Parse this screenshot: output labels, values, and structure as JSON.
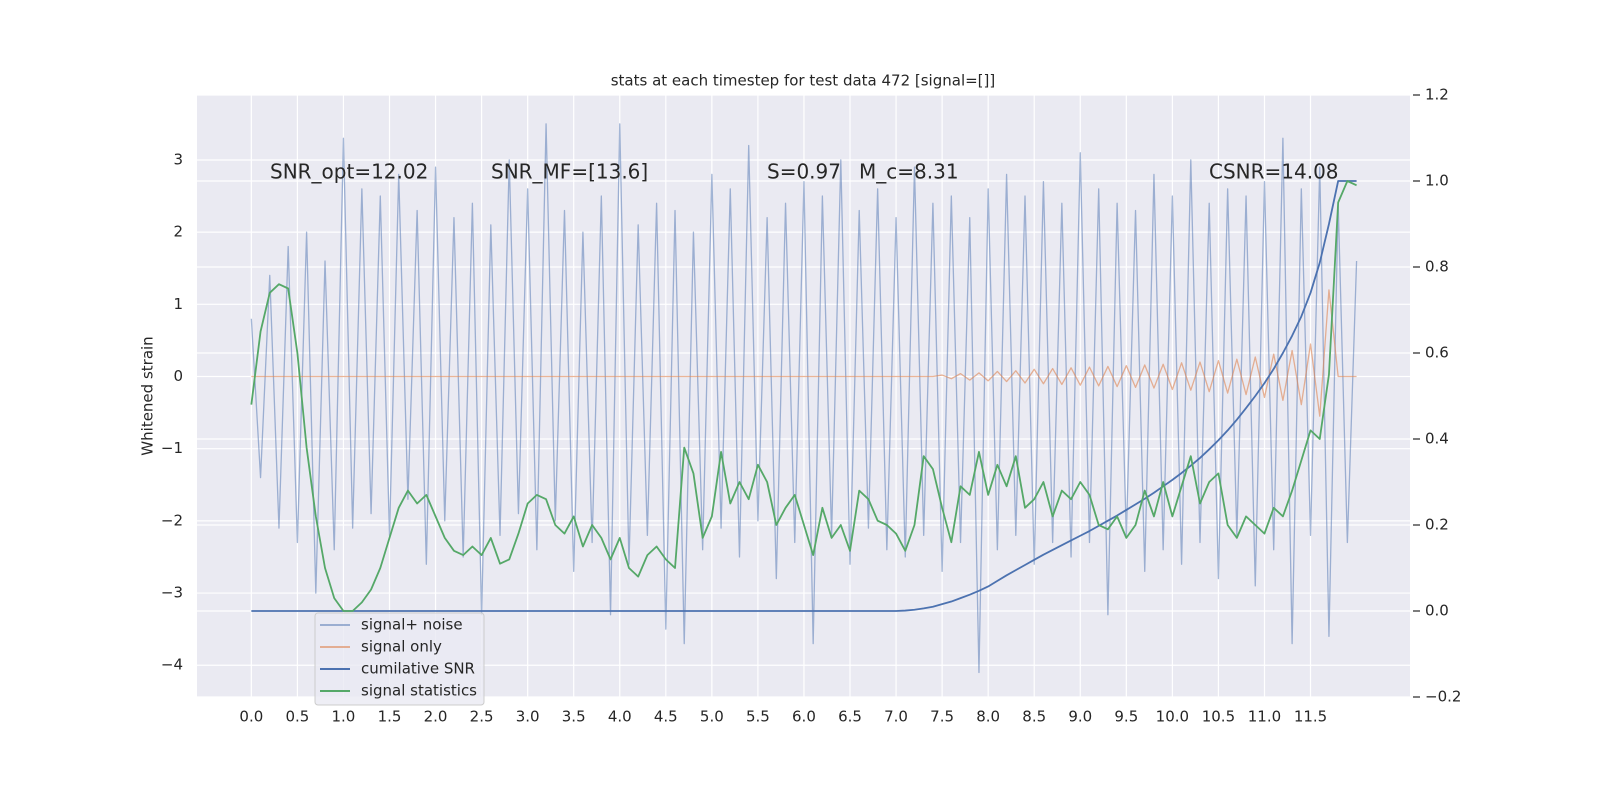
{
  "chart_data": {
    "type": "line",
    "title": "stats at each timestep for test data 472 [signal=[]]",
    "ylabel": "Whitened strain",
    "annotations": [
      "SNR_opt=12.02",
      "SNR_MF=[13.6]",
      "S=0.97",
      "M_c=8.31",
      "CSNR=14.08"
    ],
    "xlim": [
      -0.59,
      12.58
    ],
    "ylim": [
      -4.44,
      3.9
    ],
    "y2lim": [
      -0.2,
      1.2
    ],
    "xticks": [
      {
        "value": 0,
        "label": "0.0"
      },
      0.5,
      {
        "value": 1,
        "label": "1.0"
      },
      1.5,
      {
        "value": 2,
        "label": "2.0"
      },
      2.5,
      {
        "value": 3,
        "label": "3.0"
      },
      3.5,
      {
        "value": 4,
        "label": "4.0"
      },
      4.5,
      {
        "value": 5,
        "label": "5.0"
      },
      5.5,
      {
        "value": 6,
        "label": "6.0"
      },
      6.5,
      {
        "value": 7,
        "label": "7.0"
      },
      7.5,
      {
        "value": 8,
        "label": "8.0"
      },
      8.5,
      {
        "value": 9,
        "label": "9.0"
      },
      9.5,
      {
        "value": 10,
        "label": "10.0"
      },
      10.5,
      {
        "value": 11,
        "label": "11.0"
      },
      11.5
    ],
    "yticks": [
      {
        "value": -4,
        "label": "−4"
      },
      {
        "value": -3,
        "label": "−3"
      },
      {
        "value": -2,
        "label": "−2"
      },
      {
        "value": -1,
        "label": "−1"
      },
      0,
      1,
      2,
      3
    ],
    "y2ticks": [
      {
        "value": -0.2,
        "label": "−0.2"
      },
      {
        "value": 0,
        "label": "0.0"
      },
      0.2,
      0.4,
      0.6,
      0.8,
      {
        "value": 1,
        "label": "1.0"
      },
      1.2
    ],
    "grid": true,
    "legend": "lower left",
    "x": [
      0.0,
      0.1,
      0.2,
      0.3,
      0.4,
      0.5,
      0.6,
      0.7,
      0.8,
      0.9,
      1.0,
      1.1,
      1.2,
      1.3,
      1.4,
      1.5,
      1.6,
      1.7,
      1.8,
      1.9,
      2.0,
      2.1,
      2.2,
      2.3,
      2.4,
      2.5,
      2.6,
      2.7,
      2.8,
      2.9,
      3.0,
      3.1,
      3.2,
      3.3,
      3.4,
      3.5,
      3.6,
      3.7,
      3.8,
      3.9,
      4.0,
      4.1,
      4.2,
      4.3,
      4.4,
      4.5,
      4.6,
      4.7,
      4.8,
      4.9,
      5.0,
      5.1,
      5.2,
      5.3,
      5.4,
      5.5,
      5.6,
      5.7,
      5.8,
      5.9,
      6.0,
      6.1,
      6.2,
      6.3,
      6.4,
      6.5,
      6.6,
      6.7,
      6.8,
      6.9,
      7.0,
      7.1,
      7.2,
      7.3,
      7.4,
      7.5,
      7.6,
      7.7,
      7.8,
      7.9,
      8.0,
      8.1,
      8.2,
      8.3,
      8.4,
      8.5,
      8.6,
      8.7,
      8.8,
      8.9,
      9.0,
      9.1,
      9.2,
      9.3,
      9.4,
      9.5,
      9.6,
      9.7,
      9.8,
      9.9,
      10.0,
      10.1,
      10.2,
      10.3,
      10.4,
      10.5,
      10.6,
      10.7,
      10.8,
      10.9,
      11.0,
      11.1,
      11.2,
      11.3,
      11.4,
      11.5,
      11.6,
      11.7,
      11.8,
      11.9,
      12.0
    ],
    "series": [
      {
        "name": "signal+ noise",
        "color": "#4c72b0",
        "opacity": 0.5,
        "values": [
          0.8,
          -1.4,
          1.4,
          -2.1,
          1.8,
          -2.3,
          2.0,
          -3.0,
          1.6,
          -2.4,
          3.3,
          -2.1,
          2.6,
          -1.9,
          2.5,
          -2.2,
          2.8,
          -1.7,
          2.3,
          -2.6,
          2.9,
          -2.0,
          2.2,
          -2.5,
          2.4,
          -3.3,
          2.1,
          -2.2,
          3.0,
          -1.9,
          2.6,
          -2.4,
          3.5,
          -2.0,
          2.3,
          -2.7,
          2.0,
          -2.3,
          2.5,
          -3.3,
          3.5,
          -2.6,
          2.1,
          -2.2,
          2.4,
          -3.5,
          2.3,
          -3.7,
          2.0,
          -2.4,
          2.8,
          -2.1,
          2.6,
          -2.5,
          3.2,
          -2.0,
          2.2,
          -2.8,
          2.4,
          -2.3,
          2.7,
          -3.7,
          2.5,
          -2.2,
          3.0,
          -2.6,
          2.3,
          -2.1,
          2.6,
          -2.4,
          2.2,
          -2.5,
          2.9,
          -2.2,
          2.4,
          -2.7,
          2.5,
          -2.3,
          2.2,
          -4.1,
          2.6,
          -2.4,
          2.8,
          -2.2,
          2.5,
          -2.6,
          2.7,
          -2.3,
          2.4,
          -2.5,
          3.1,
          -2.3,
          2.6,
          -3.3,
          2.4,
          -2.2,
          2.3,
          -2.7,
          2.8,
          -2.4,
          2.5,
          -2.6,
          3.0,
          -2.3,
          2.4,
          -2.8,
          2.6,
          -2.2,
          2.5,
          -2.9,
          2.7,
          -2.4,
          3.3,
          -3.7,
          2.6,
          -2.2,
          2.9,
          -3.6,
          2.4,
          -2.3,
          1.6
        ]
      },
      {
        "name": "signal only",
        "color": "#dd8452",
        "opacity": 0.6,
        "values": [
          0,
          0,
          0,
          0,
          0,
          0,
          0,
          0,
          0,
          0,
          0,
          0,
          0,
          0,
          0,
          0,
          0,
          0,
          0,
          0,
          0,
          0,
          0,
          0,
          0,
          0,
          0,
          0,
          0,
          0,
          0,
          0,
          0,
          0,
          0,
          0,
          0,
          0,
          0,
          0,
          0,
          0,
          0,
          0,
          0,
          0,
          0,
          0,
          0,
          0,
          0,
          0,
          0,
          0,
          0,
          0,
          0,
          0,
          0,
          0,
          0,
          0,
          0,
          0,
          0,
          0,
          0,
          0,
          0,
          0,
          0,
          0,
          0,
          0,
          0,
          0.02,
          -0.03,
          0.04,
          -0.05,
          0.05,
          -0.06,
          0.07,
          -0.07,
          0.08,
          -0.09,
          0.1,
          -0.1,
          0.11,
          -0.11,
          0.12,
          -0.12,
          0.13,
          -0.13,
          0.14,
          -0.14,
          0.15,
          -0.15,
          0.16,
          -0.16,
          0.17,
          -0.18,
          0.19,
          -0.19,
          0.2,
          -0.21,
          0.22,
          -0.23,
          0.24,
          -0.25,
          0.27,
          -0.29,
          0.31,
          -0.33,
          0.36,
          -0.39,
          0.45,
          -0.55,
          1.2,
          0,
          0,
          0
        ]
      },
      {
        "name": "cumilative SNR",
        "color": "#4c72b0",
        "opacity": 1,
        "axis": "y2",
        "values": [
          0,
          0,
          0,
          0,
          0,
          0,
          0,
          0,
          0,
          0,
          0,
          0,
          0,
          0,
          0,
          0,
          0,
          0,
          0,
          0,
          0,
          0,
          0,
          0,
          0,
          0,
          0,
          0,
          0,
          0,
          0,
          0,
          0,
          0,
          0,
          0,
          0,
          0,
          0,
          0,
          0,
          0,
          0,
          0,
          0,
          0,
          0,
          0,
          0,
          0,
          0,
          0,
          0,
          0,
          0,
          0,
          0,
          0,
          0,
          0,
          0,
          0,
          0,
          0,
          0,
          0,
          0,
          0,
          0,
          0,
          0,
          0.001,
          0.003,
          0.006,
          0.01,
          0.016,
          0.022,
          0.03,
          0.038,
          0.047,
          0.057,
          0.07,
          0.083,
          0.095,
          0.107,
          0.119,
          0.131,
          0.142,
          0.153,
          0.164,
          0.175,
          0.186,
          0.198,
          0.21,
          0.222,
          0.235,
          0.248,
          0.261,
          0.275,
          0.29,
          0.305,
          0.321,
          0.338,
          0.356,
          0.376,
          0.397,
          0.42,
          0.445,
          0.472,
          0.5,
          0.53,
          0.563,
          0.6,
          0.64,
          0.685,
          0.74,
          0.81,
          0.9,
          1.0,
          1.0,
          1.0
        ]
      },
      {
        "name": "signal statistics",
        "color": "#55a868",
        "opacity": 1,
        "axis": "y2",
        "values": [
          0.48,
          0.65,
          0.74,
          0.76,
          0.75,
          0.6,
          0.38,
          0.22,
          0.1,
          0.03,
          0.0,
          0.0,
          0.02,
          0.05,
          0.1,
          0.17,
          0.24,
          0.28,
          0.25,
          0.27,
          0.22,
          0.17,
          0.14,
          0.13,
          0.15,
          0.13,
          0.17,
          0.11,
          0.12,
          0.18,
          0.25,
          0.27,
          0.26,
          0.2,
          0.18,
          0.22,
          0.15,
          0.2,
          0.17,
          0.12,
          0.17,
          0.1,
          0.08,
          0.13,
          0.15,
          0.12,
          0.1,
          0.38,
          0.32,
          0.17,
          0.22,
          0.37,
          0.25,
          0.3,
          0.26,
          0.34,
          0.3,
          0.2,
          0.24,
          0.27,
          0.2,
          0.13,
          0.24,
          0.17,
          0.2,
          0.14,
          0.28,
          0.26,
          0.21,
          0.2,
          0.18,
          0.14,
          0.2,
          0.36,
          0.33,
          0.24,
          0.16,
          0.29,
          0.27,
          0.37,
          0.27,
          0.34,
          0.29,
          0.36,
          0.24,
          0.26,
          0.3,
          0.22,
          0.28,
          0.26,
          0.3,
          0.27,
          0.2,
          0.19,
          0.22,
          0.17,
          0.2,
          0.28,
          0.22,
          0.3,
          0.22,
          0.29,
          0.36,
          0.25,
          0.3,
          0.32,
          0.2,
          0.17,
          0.22,
          0.2,
          0.18,
          0.24,
          0.22,
          0.28,
          0.35,
          0.42,
          0.4,
          0.55,
          0.95,
          1.0,
          0.99
        ]
      }
    ]
  }
}
